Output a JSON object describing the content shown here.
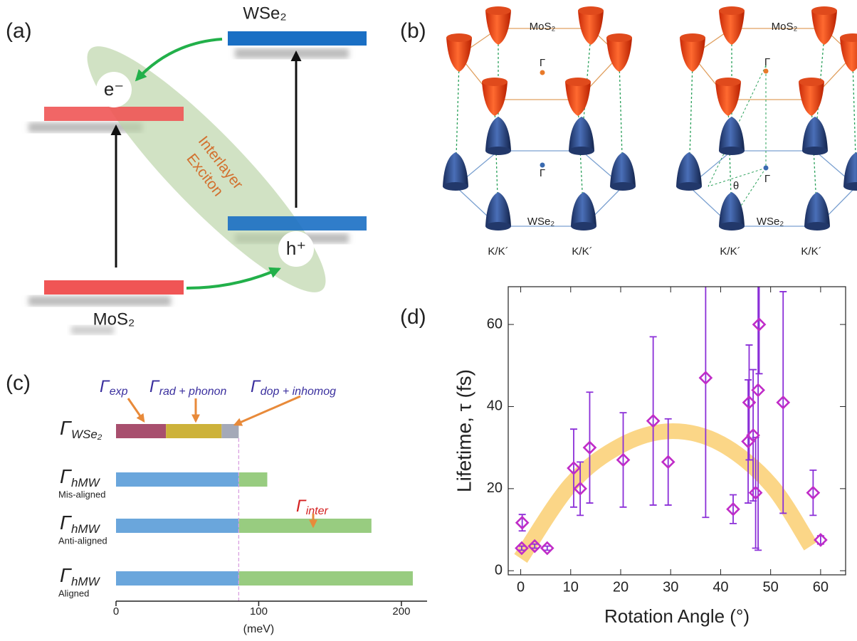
{
  "panel_labels": [
    "(a)",
    "(b)",
    "(c)",
    "(d)"
  ],
  "panel_a": {
    "top_material": "WSe₂",
    "bottom_material": "MoS₂",
    "electron": "e⁻",
    "hole": "h⁺",
    "exciton_label": [
      "Interlayer",
      "Exciton"
    ]
  },
  "panel_b": {
    "top_layer_labels": [
      "MoS₂",
      "MoS₂"
    ],
    "gamma_labels": [
      "Γ",
      "Γ",
      "Γ",
      "Γ"
    ],
    "bottom_layer_labels": [
      "WSe₂",
      "WSe₂"
    ],
    "valley_labels": [
      "K/K´",
      "K/K´",
      "K/K´",
      "K/K´"
    ],
    "angle_label": "θ"
  },
  "chart_data": [
    {
      "type": "stacked-hbar",
      "categories": [
        {
          "symbol": "Γ",
          "subscript": "WSe₂"
        },
        {
          "symbol": "Γ",
          "subscript": "hMW",
          "note": "Mis-aligned"
        },
        {
          "symbol": "Γ",
          "subscript": "hMW",
          "note": "Anti-aligned"
        },
        {
          "symbol": "Γ",
          "subscript": "hMW",
          "note": "Aligned"
        }
      ],
      "series": [
        {
          "color": "#a84f6e",
          "values": [
            35,
            null,
            null,
            null
          ]
        },
        {
          "color": "#cdb23a",
          "values": [
            39,
            null,
            null,
            null
          ]
        },
        {
          "color": "#a4a9b8",
          "values": [
            12,
            null,
            null,
            null
          ]
        },
        {
          "color": "#6aa6dc",
          "values": [
            null,
            86,
            86,
            86
          ]
        },
        {
          "color": "#98cc80",
          "values": [
            null,
            20,
            93,
            122
          ]
        }
      ],
      "xlim": [
        0,
        218
      ],
      "xticks": [
        0,
        100,
        200
      ],
      "xlabel": "(meV)",
      "annotations": [
        {
          "symbol": "Γ",
          "subscript": "exp",
          "color": "#3a2f9e"
        },
        {
          "symbol": "Γ",
          "subscript": "rad + phonon",
          "color": "#3a2f9e"
        },
        {
          "symbol": "Γ",
          "subscript": "dop + inhomog",
          "color": "#3a2f9e"
        },
        {
          "symbol": "Γ",
          "subscript": "inter",
          "color": "#d42020"
        }
      ]
    },
    {
      "type": "scatter",
      "xlabel": "Rotation Angle (°)",
      "ylabel": "Lifetime, τ (fs)",
      "x": [
        0.3,
        0.2,
        2.8,
        5.3,
        10.6,
        11.9,
        13.8,
        20.5,
        26.5,
        29.5,
        37,
        42.5,
        45.5,
        45.7,
        46.5,
        47,
        47.5,
        47.7,
        52.5,
        58.5,
        60
      ],
      "y": [
        11.7,
        5.5,
        6,
        5.5,
        25,
        20,
        30,
        27,
        36.5,
        26.5,
        47,
        15,
        31.5,
        41,
        33,
        19,
        44,
        60,
        41,
        19,
        7.5
      ],
      "errors": [
        2,
        0.5,
        0.5,
        0.5,
        9.5,
        6.5,
        13.5,
        11.5,
        20.5,
        10.5,
        34,
        3.5,
        15,
        14,
        16,
        13.5,
        39,
        12,
        27,
        5.5,
        1
      ],
      "color": "#c02cc8",
      "error_color": "#8b2fd8",
      "xlim": [
        -2.5,
        65
      ],
      "ylim": [
        -1,
        69.2
      ],
      "xticks": [
        0,
        10,
        20,
        30,
        40,
        50,
        60
      ],
      "yticks": [
        0,
        20,
        40,
        60
      ],
      "fit": {
        "color": "#fbd27a",
        "x": [
          0,
          10,
          20,
          30,
          40,
          50,
          58
        ],
        "y": [
          3,
          21,
          30.5,
          34,
          31,
          21,
          6
        ]
      }
    }
  ]
}
